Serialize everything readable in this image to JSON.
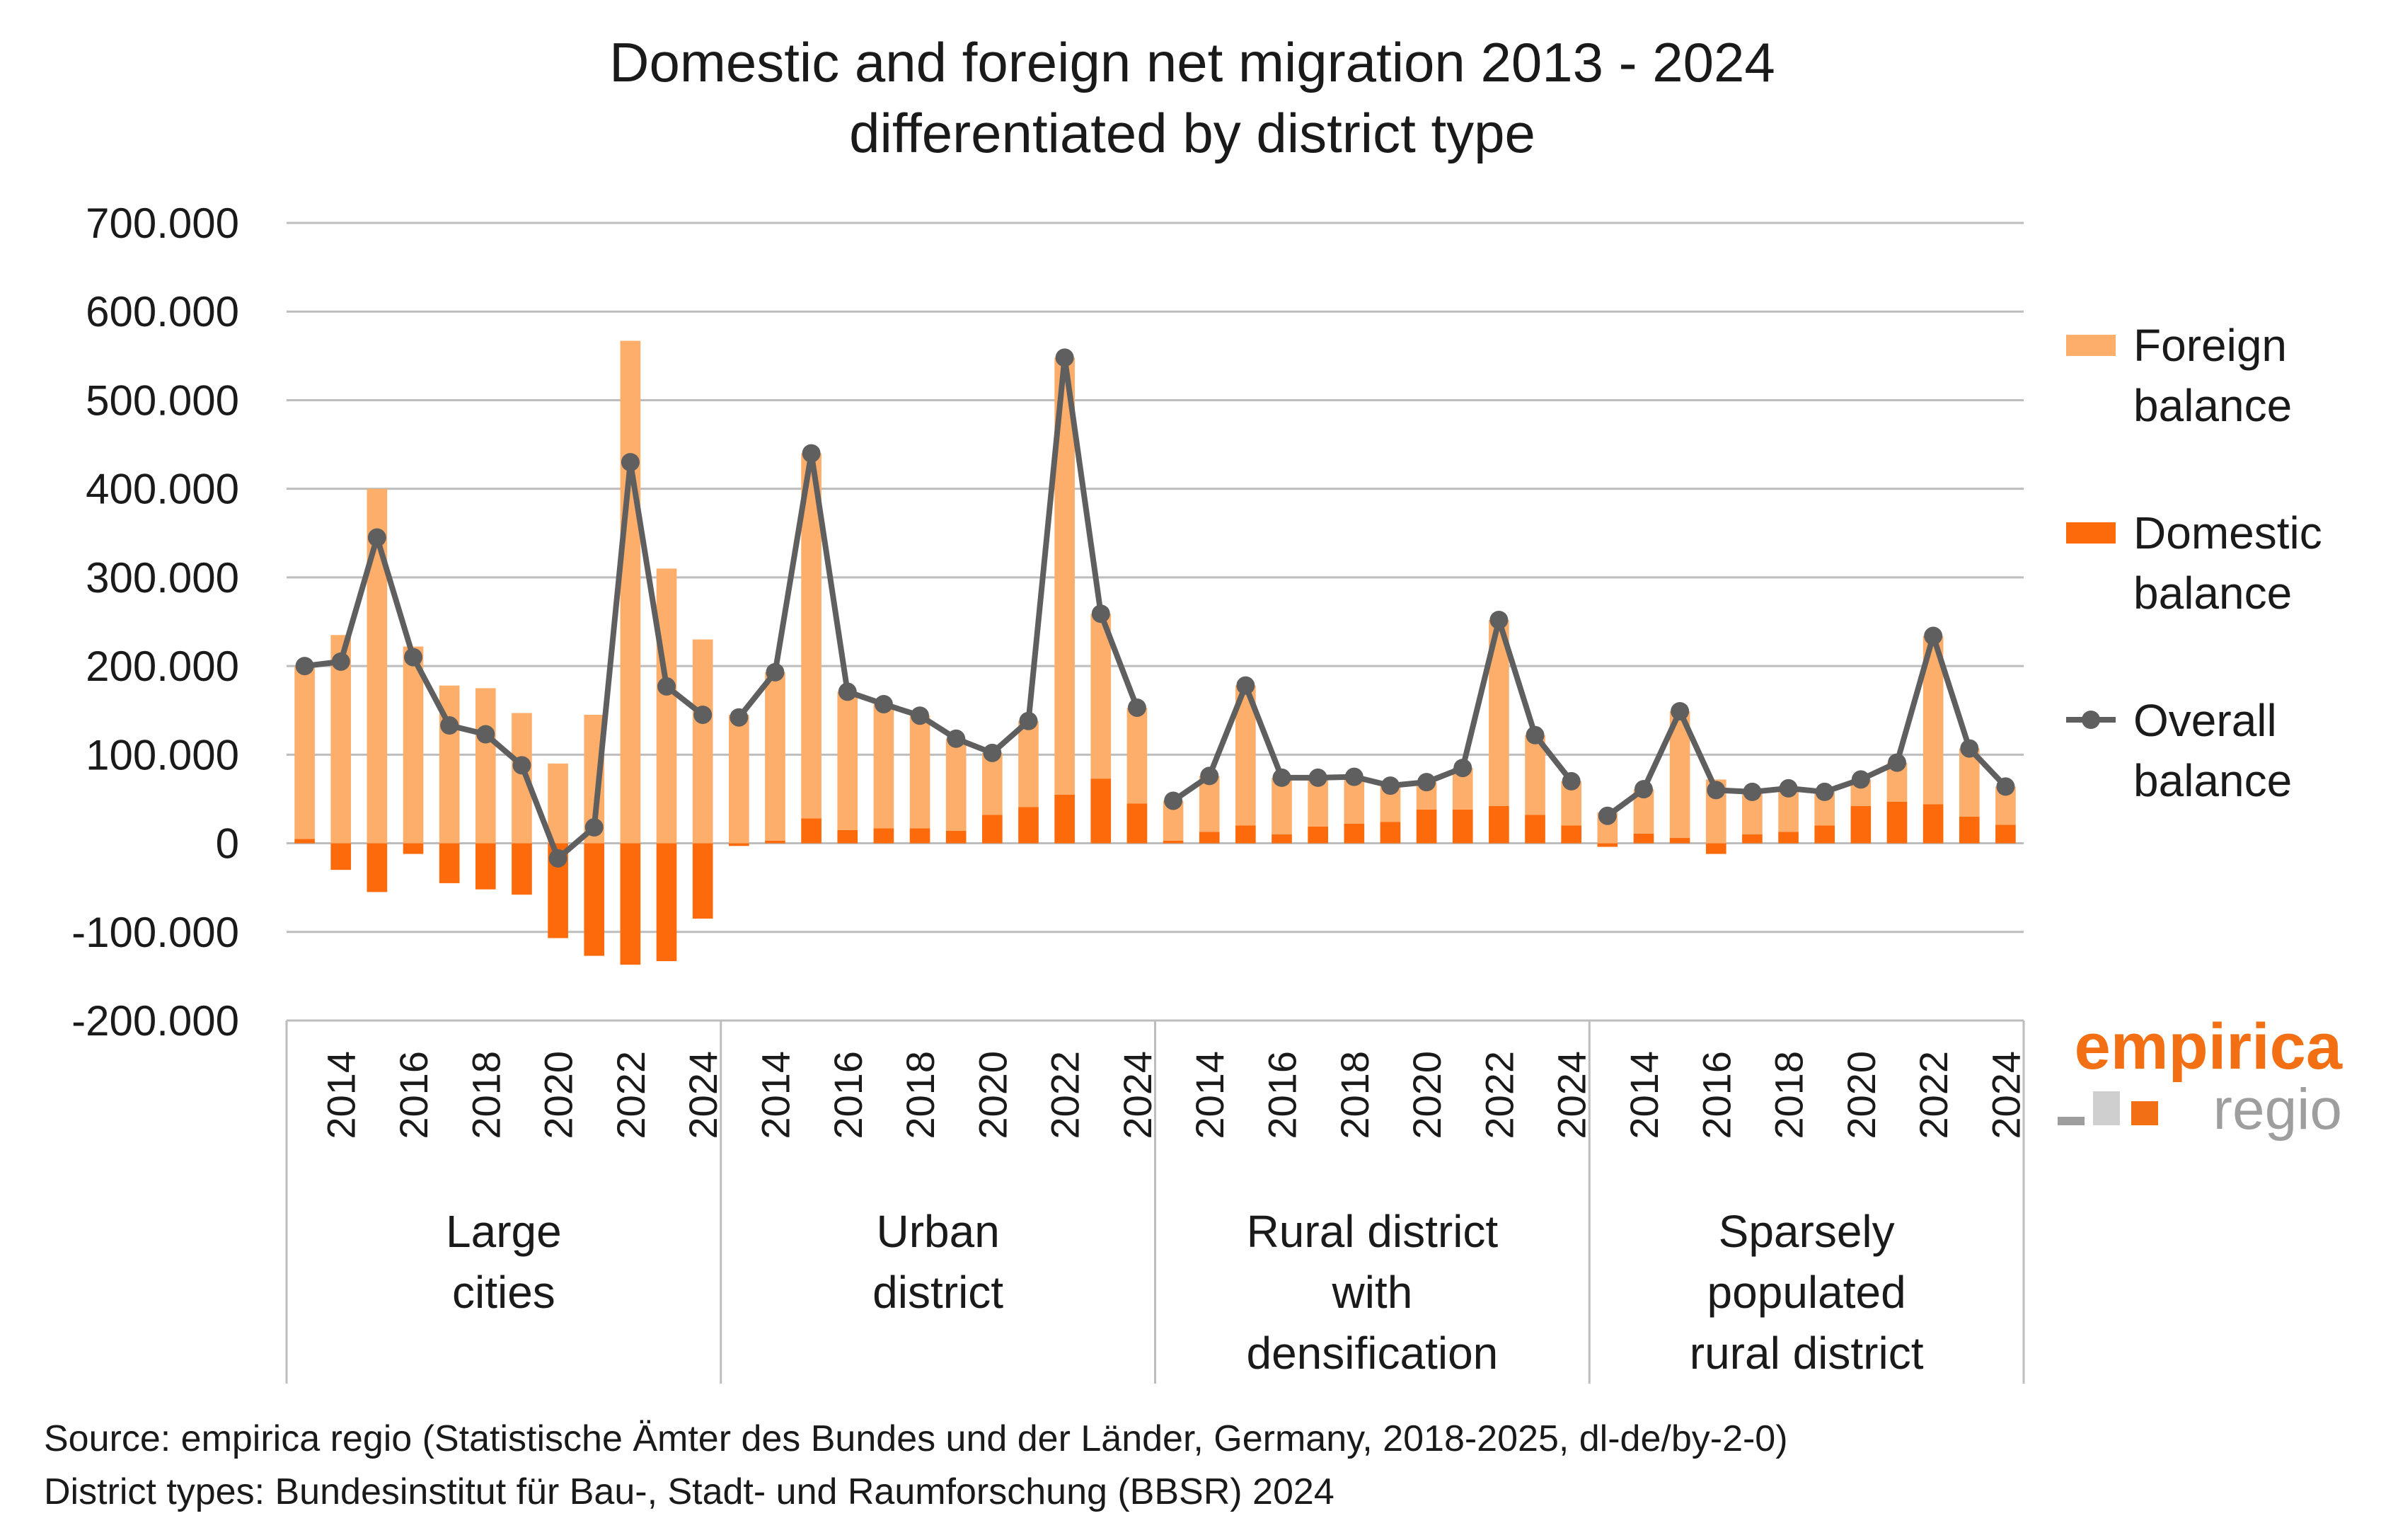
{
  "title": [
    "Domestic and foreign net migration 2013 - 2024",
    "differentiated by district type"
  ],
  "colors": {
    "foreign": "#fdae6b",
    "domestic": "#fd6a0b",
    "overall": "#5f5f5f",
    "grid": "#bdbdbd",
    "axis": "#bdbdbd",
    "logo_orange": "#f36f13",
    "logo_grey": "#9e9e9e",
    "logo_light_grey": "#cfcfcf"
  },
  "legend": {
    "foreign": [
      "Foreign",
      "balance"
    ],
    "domestic": [
      "Domestic",
      "balance"
    ],
    "overall": [
      "Overall",
      "balance"
    ]
  },
  "source": [
    "Source: empirica regio (Statistische Ämter des Bundes und der Länder, Germany, 2018-2025, dl-de/by-2-0)",
    "District types: Bundesinstitut für Bau-, Stadt- und Raumforschung (BBSR) 2024"
  ],
  "logo": {
    "main": "empirica",
    "sub": "regio",
    "mark_icon": "three-squares-icon"
  },
  "chart_data": {
    "type": "bar",
    "stacked": true,
    "ylim": [
      -200000,
      700000
    ],
    "yticks": [
      700000,
      600000,
      500000,
      400000,
      300000,
      200000,
      100000,
      0,
      -100000,
      -200000
    ],
    "ytick_labels": [
      "700.000",
      "600.000",
      "500.000",
      "400.000",
      "300.000",
      "200.000",
      "100.000",
      "0",
      "-100.000",
      "-200.000"
    ],
    "years": [
      2013,
      2014,
      2015,
      2016,
      2017,
      2018,
      2019,
      2020,
      2021,
      2022,
      2023,
      2024
    ],
    "xtick_labels": [
      "2014",
      "2016",
      "2018",
      "2020",
      "2022",
      "2024"
    ],
    "groups": [
      {
        "label": [
          "Large",
          "cities"
        ],
        "foreign": [
          195000,
          235000,
          400000,
          222000,
          178000,
          175000,
          147000,
          90000,
          145000,
          567000,
          310000,
          230000
        ],
        "domestic": [
          5000,
          -30000,
          -55000,
          -12000,
          -45000,
          -52000,
          -58000,
          -107000,
          -127000,
          -137000,
          -133000,
          -85000
        ],
        "overall": [
          200000,
          205000,
          345000,
          210000,
          133000,
          123000,
          88000,
          -17000,
          18000,
          430000,
          177000,
          145000
        ]
      },
      {
        "label": [
          "Urban",
          "district"
        ],
        "foreign": [
          145000,
          190000,
          412000,
          156000,
          140000,
          127000,
          104000,
          70000,
          97000,
          493000,
          186000,
          108000
        ],
        "domestic": [
          -3000,
          3000,
          28000,
          15000,
          17000,
          17000,
          14000,
          32000,
          41000,
          55000,
          73000,
          45000
        ],
        "overall": [
          142000,
          193000,
          440000,
          171000,
          157000,
          144000,
          118000,
          102000,
          138000,
          548000,
          259000,
          153000
        ]
      },
      {
        "label": [
          "Rural district",
          "with",
          "densification"
        ],
        "foreign": [
          45000,
          63000,
          158000,
          64000,
          55000,
          53000,
          41000,
          31000,
          47000,
          210000,
          90000,
          50000
        ],
        "domestic": [
          3000,
          13000,
          20000,
          10000,
          19000,
          22000,
          24000,
          38000,
          38000,
          42000,
          32000,
          20000
        ],
        "overall": [
          48000,
          76000,
          178000,
          74000,
          74000,
          75000,
          65000,
          69000,
          85000,
          252000,
          122000,
          70000
        ]
      },
      {
        "label": [
          "Sparsely",
          "populated",
          "rural district"
        ],
        "foreign": [
          35000,
          50000,
          143000,
          72000,
          48000,
          49000,
          38000,
          30000,
          44000,
          190000,
          77000,
          43000
        ],
        "domestic": [
          -4000,
          11000,
          6000,
          -12000,
          10000,
          13000,
          20000,
          42000,
          47000,
          44000,
          30000,
          21000
        ],
        "overall": [
          31000,
          61000,
          149000,
          60000,
          58000,
          62000,
          58000,
          72000,
          91000,
          234000,
          107000,
          64000
        ]
      }
    ]
  }
}
